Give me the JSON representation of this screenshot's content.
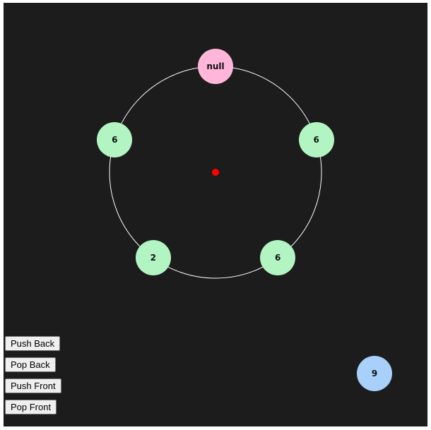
{
  "ring": {
    "stroke_color": "#ffffff",
    "center_color": "#ff0000",
    "nodes": [
      {
        "label": "null",
        "color": "#ffb6d9"
      },
      {
        "label": "6",
        "color": "#b3f5c2"
      },
      {
        "label": "6",
        "color": "#b3f5c2"
      },
      {
        "label": "2",
        "color": "#b3f5c2"
      },
      {
        "label": "6",
        "color": "#b3f5c2"
      }
    ]
  },
  "pending_node": {
    "label": "9",
    "color": "#a8d0fa"
  },
  "controls": {
    "push_back": "Push Back",
    "pop_back": "Pop Back",
    "push_front": "Push Front",
    "pop_front": "Pop Front"
  }
}
